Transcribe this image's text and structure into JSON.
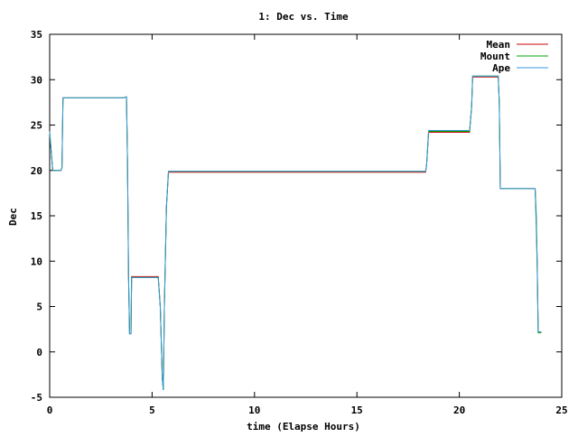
{
  "chart_data": {
    "type": "line",
    "title": "1: Dec vs. Time",
    "xlabel": "time (Elapse Hours)",
    "ylabel": "Dec",
    "xlim": [
      0,
      25
    ],
    "ylim": [
      -5,
      35
    ],
    "xticks": [
      0,
      5,
      10,
      15,
      20,
      25
    ],
    "yticks": [
      -5,
      0,
      5,
      10,
      15,
      20,
      25,
      30,
      35
    ],
    "legend_position": "top-right",
    "grid": false,
    "series": [
      {
        "name": "Mean",
        "color": "#cc0000",
        "points": [
          [
            0,
            24.1
          ],
          [
            0.15,
            20.0
          ],
          [
            0.55,
            20.0
          ],
          [
            0.6,
            20.3
          ],
          [
            0.65,
            28.0
          ],
          [
            3.6,
            28.0
          ],
          [
            3.75,
            28.1
          ],
          [
            3.8,
            21.0
          ],
          [
            3.85,
            8.5
          ],
          [
            3.9,
            2.0
          ],
          [
            3.97,
            2.0
          ],
          [
            4.0,
            8.3
          ],
          [
            5.3,
            8.3
          ],
          [
            5.4,
            5.0
          ],
          [
            5.5,
            -3.0
          ],
          [
            5.55,
            -4.2
          ],
          [
            5.6,
            5.0
          ],
          [
            5.7,
            16.0
          ],
          [
            5.8,
            19.8
          ],
          [
            18.35,
            19.8
          ],
          [
            18.4,
            20.5
          ],
          [
            18.5,
            24.2
          ],
          [
            20.5,
            24.2
          ],
          [
            20.6,
            27.0
          ],
          [
            20.65,
            30.3
          ],
          [
            21.9,
            30.3
          ],
          [
            21.95,
            27.5
          ],
          [
            22.0,
            18.0
          ],
          [
            23.7,
            18.0
          ],
          [
            23.75,
            15.0
          ],
          [
            23.8,
            10.0
          ],
          [
            23.85,
            2.2
          ],
          [
            24.0,
            2.2
          ]
        ]
      },
      {
        "name": "Mount",
        "color": "#00aa00",
        "points": [
          [
            0,
            24.2
          ],
          [
            0.15,
            20.0
          ],
          [
            0.55,
            20.0
          ],
          [
            0.6,
            20.3
          ],
          [
            0.65,
            28.0
          ],
          [
            3.6,
            28.0
          ],
          [
            3.75,
            28.1
          ],
          [
            3.8,
            21.0
          ],
          [
            3.85,
            8.3
          ],
          [
            3.9,
            2.0
          ],
          [
            3.97,
            2.0
          ],
          [
            4.0,
            8.2
          ],
          [
            5.3,
            8.2
          ],
          [
            5.4,
            5.0
          ],
          [
            5.5,
            -3.0
          ],
          [
            5.55,
            -4.2
          ],
          [
            5.6,
            5.0
          ],
          [
            5.7,
            16.0
          ],
          [
            5.8,
            19.9
          ],
          [
            18.35,
            19.9
          ],
          [
            18.4,
            20.5
          ],
          [
            18.5,
            24.3
          ],
          [
            20.5,
            24.3
          ],
          [
            20.6,
            27.0
          ],
          [
            20.65,
            30.4
          ],
          [
            21.9,
            30.4
          ],
          [
            21.95,
            27.5
          ],
          [
            22.0,
            18.0
          ],
          [
            23.7,
            18.0
          ],
          [
            23.75,
            15.5
          ],
          [
            23.8,
            10.0
          ],
          [
            23.85,
            2.1
          ],
          [
            24.0,
            2.1
          ]
        ]
      },
      {
        "name": "Ape",
        "color": "#3399dd",
        "points": [
          [
            0,
            24.3
          ],
          [
            0.15,
            20.0
          ],
          [
            0.55,
            20.0
          ],
          [
            0.6,
            20.3
          ],
          [
            0.65,
            28.0
          ],
          [
            3.6,
            28.0
          ],
          [
            3.75,
            28.1
          ],
          [
            3.8,
            21.0
          ],
          [
            3.85,
            8.3
          ],
          [
            3.9,
            2.0
          ],
          [
            3.97,
            2.0
          ],
          [
            4.0,
            8.2
          ],
          [
            5.3,
            8.2
          ],
          [
            5.4,
            5.0
          ],
          [
            5.5,
            -3.0
          ],
          [
            5.55,
            -4.2
          ],
          [
            5.6,
            5.0
          ],
          [
            5.7,
            16.0
          ],
          [
            5.8,
            19.9
          ],
          [
            18.35,
            19.9
          ],
          [
            18.4,
            20.5
          ],
          [
            18.5,
            24.4
          ],
          [
            20.5,
            24.4
          ],
          [
            20.6,
            27.0
          ],
          [
            20.65,
            30.4
          ],
          [
            21.9,
            30.4
          ],
          [
            21.95,
            27.5
          ],
          [
            22.0,
            18.0
          ],
          [
            23.7,
            18.0
          ],
          [
            23.75,
            14.0
          ],
          [
            23.8,
            9.5
          ],
          [
            23.85,
            2.2
          ],
          [
            24.0,
            2.2
          ]
        ]
      }
    ]
  }
}
